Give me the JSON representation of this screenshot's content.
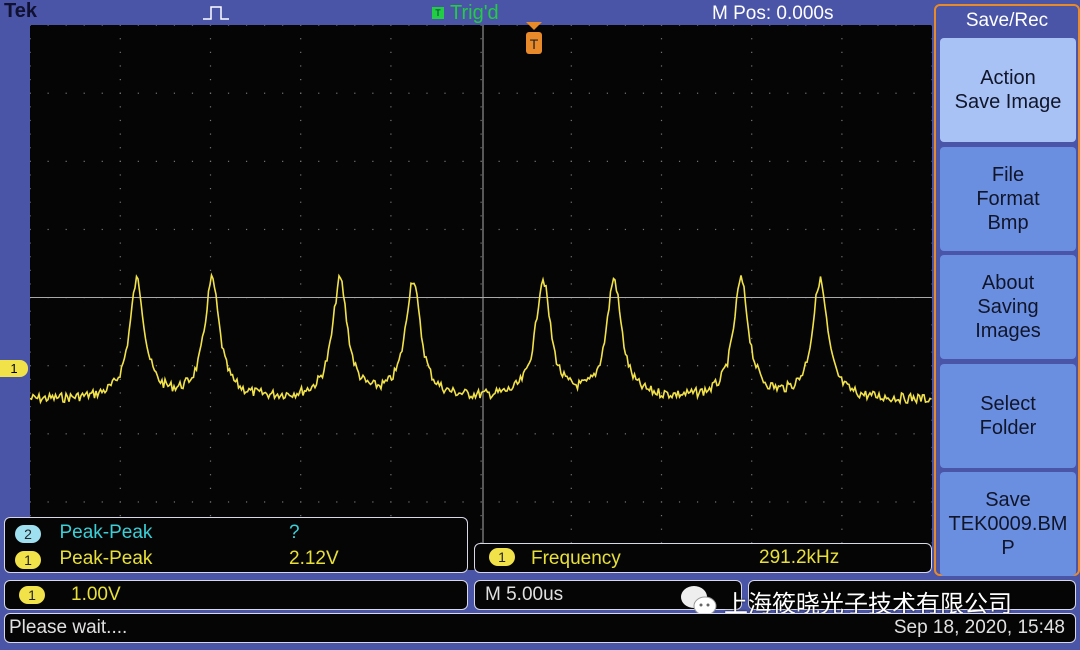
{
  "header": {
    "brand": "Tek",
    "trigger_status": "Trig'd",
    "trigger_icon": "T",
    "m_pos": "M Pos: 0.000s"
  },
  "side_menu": {
    "title": "Save/Rec",
    "buttons": [
      {
        "lines": [
          "Action",
          "Save Image"
        ],
        "active": true
      },
      {
        "lines": [
          "File",
          "Format",
          "Bmp"
        ]
      },
      {
        "lines": [
          "About",
          "Saving",
          "Images"
        ]
      },
      {
        "lines": [
          "Select",
          "Folder"
        ]
      },
      {
        "lines": [
          "Save",
          "TEK0009.BM",
          "P"
        ]
      }
    ]
  },
  "channel_marker": "1",
  "measurements": [
    {
      "channel": "2",
      "name": "Peak-Peak",
      "value": "?"
    },
    {
      "channel": "1",
      "name": "Peak-Peak",
      "value": "2.12V"
    }
  ],
  "frequency": {
    "channel": "1",
    "name": "Frequency",
    "value": "291.2kHz"
  },
  "ch1_scale": {
    "channel": "1",
    "value": "1.00V"
  },
  "timebase": "M 5.00us",
  "watermark": "上海筱晓光子技术有限公司",
  "status": "Please wait....",
  "datetime": "Sep 18, 2020, 15:48",
  "colors": {
    "ch1": "#f2e24a",
    "ch2": "#3ad0d8",
    "trigger": "#e88a2a",
    "frame": "#4a55a8"
  }
}
